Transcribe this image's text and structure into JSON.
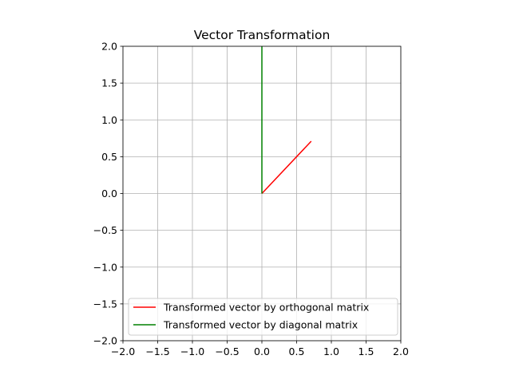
{
  "chart_data": {
    "type": "line",
    "title": "Vector Transformation",
    "xlabel": "",
    "ylabel": "",
    "xlim": [
      -2.0,
      2.0
    ],
    "ylim": [
      -2.0,
      2.0
    ],
    "grid": true,
    "legend_position": "lower-center",
    "x_ticks": [
      "−2.0",
      "−1.5",
      "−1.0",
      "−0.5",
      "0.0",
      "0.5",
      "1.0",
      "1.5",
      "2.0"
    ],
    "y_ticks": [
      "−2.0",
      "−1.5",
      "−1.0",
      "−0.5",
      "0.0",
      "0.5",
      "1.0",
      "1.5",
      "2.0"
    ],
    "series": [
      {
        "name": "Transformed vector by orthogonal matrix",
        "color": "#ff0000",
        "points": [
          [
            0.0,
            0.0
          ],
          [
            0.71,
            0.71
          ]
        ]
      },
      {
        "name": "Transformed vector by diagonal matrix",
        "color": "#008000",
        "points": [
          [
            0.0,
            0.0
          ],
          [
            0.0,
            2.0
          ]
        ]
      }
    ]
  }
}
